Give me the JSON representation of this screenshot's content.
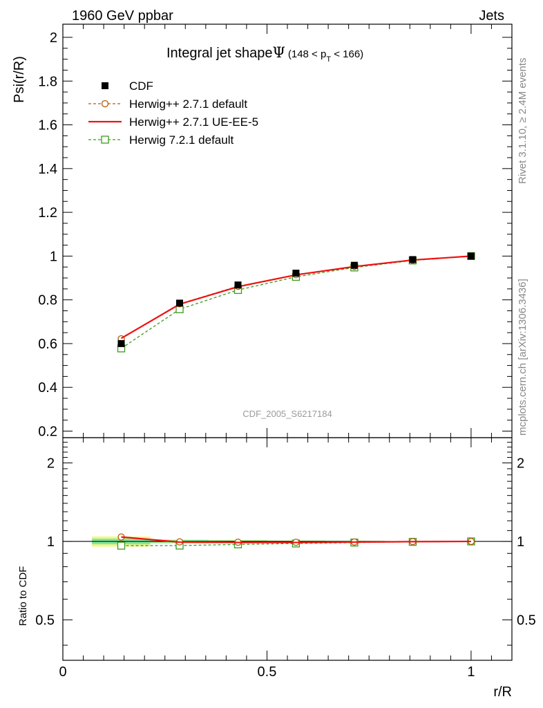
{
  "header": {
    "left": "1960 GeV ppbar",
    "right": "Jets"
  },
  "side_labels": {
    "rivet": "Rivet 3.1.10, ≥ 2.4M events",
    "mcplots": "mcplots.cern.ch [arXiv:1306.3436]"
  },
  "watermark": "CDF_2005_S6217184",
  "colors": {
    "cdf": "#000000",
    "herwigpp_default": "#b35900",
    "herwigpp_ueee5": "#ee1111",
    "herwig721": "#3c9a1a",
    "band_inner": "#7fe89a",
    "band_outer": "#f5f58a"
  },
  "chart_data": [
    {
      "type": "line",
      "title_main": "Integral jet shape",
      "title_symbol": "Ψ",
      "title_range": {
        "pre": "(148 < p",
        "sub": "T",
        "post": " < 166)"
      },
      "ylabel": "Psi(r/R)",
      "xlabel": "",
      "xlim": [
        0,
        1.1
      ],
      "ylim": [
        0.17,
        2.06
      ],
      "yticks": [
        0.2,
        0.4,
        0.6,
        0.8,
        1,
        1.2,
        1.4,
        1.6,
        1.8,
        2
      ],
      "ytick_labels": [
        "0.2",
        "0.4",
        "0.6",
        "0.8",
        "1",
        "1.2",
        "1.4",
        "1.6",
        "1.8",
        "2"
      ],
      "x": [
        0.143,
        0.286,
        0.429,
        0.571,
        0.714,
        0.857,
        1.0
      ],
      "legend_position": "top-left",
      "series": [
        {
          "name": "CDF",
          "key": "cdf",
          "marker": "square-filled",
          "values": [
            0.6,
            0.785,
            0.868,
            0.922,
            0.958,
            0.984,
            1.0
          ],
          "errors": [
            0.012,
            0.008,
            0.008,
            0.006,
            0.004,
            0.003,
            0.0
          ]
        },
        {
          "name": "Herwig++ 2.7.1 default",
          "key": "herwigpp_default",
          "marker": "circle-open",
          "dashed": true,
          "values": [
            0.622,
            0.782,
            0.862,
            0.915,
            0.953,
            0.982,
            1.0
          ]
        },
        {
          "name": "Herwig++ 2.7.1 UE-EE-5",
          "key": "herwigpp_ueee5",
          "marker": "none",
          "dashed": false,
          "values": [
            0.624,
            0.78,
            0.86,
            0.914,
            0.952,
            0.982,
            1.0
          ]
        },
        {
          "name": "Herwig 7.2.1 default",
          "key": "herwig721",
          "marker": "square-open",
          "dashed": true,
          "values": [
            0.578,
            0.757,
            0.845,
            0.905,
            0.948,
            0.98,
            1.0
          ]
        }
      ]
    },
    {
      "type": "line",
      "ylabel": "Ratio to CDF",
      "xlabel": "r/R",
      "xlim": [
        0,
        1.1
      ],
      "ylim": [
        0.35,
        2.5
      ],
      "log_y": true,
      "yticks": [
        0.5,
        1,
        2
      ],
      "ytick_labels": [
        "0.5",
        "1",
        "2"
      ],
      "xticks": [
        0,
        0.5,
        1
      ],
      "xtick_labels": [
        "0",
        "0.5",
        "1"
      ],
      "x": [
        0.143,
        0.286,
        0.429,
        0.571,
        0.714,
        0.857,
        1.0
      ],
      "bands": [
        {
          "x_from": 0.071,
          "x_to": 0.214,
          "inner": 0.025,
          "outer": 0.045
        },
        {
          "x_from": 0.214,
          "x_to": 0.357,
          "inner": 0.012,
          "outer": 0.018
        },
        {
          "x_from": 0.357,
          "x_to": 0.5,
          "inner": 0.009,
          "outer": 0.013
        },
        {
          "x_from": 0.5,
          "x_to": 0.643,
          "inner": 0.006,
          "outer": 0.009
        },
        {
          "x_from": 0.643,
          "x_to": 0.786,
          "inner": 0.004,
          "outer": 0.006
        },
        {
          "x_from": 0.786,
          "x_to": 0.929,
          "inner": 0.003,
          "outer": 0.004
        },
        {
          "x_from": 0.929,
          "x_to": 1.071,
          "inner": 0.001,
          "outer": 0.002
        }
      ],
      "series": [
        {
          "key": "herwigpp_default",
          "marker": "circle-open",
          "dashed": true,
          "values": [
            1.04,
            0.996,
            0.993,
            0.992,
            0.995,
            0.998,
            1.0
          ]
        },
        {
          "key": "herwigpp_ueee5",
          "marker": "none",
          "dashed": false,
          "values": [
            1.04,
            0.994,
            0.991,
            0.991,
            0.994,
            0.998,
            1.0
          ]
        },
        {
          "key": "herwig721",
          "marker": "square-open",
          "dashed": true,
          "values": [
            0.963,
            0.964,
            0.974,
            0.982,
            0.99,
            0.996,
            1.0
          ]
        }
      ]
    }
  ]
}
